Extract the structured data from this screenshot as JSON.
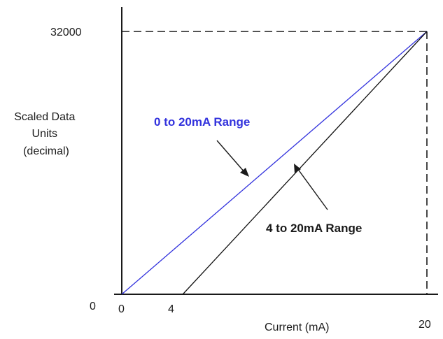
{
  "chart_data": {
    "type": "line",
    "title": "",
    "xlabel": "Current (mA)",
    "ylabel_lines": [
      "Scaled Data",
      "Units",
      "(decimal)"
    ],
    "xlim": [
      0,
      20
    ],
    "ylim": [
      0,
      32000
    ],
    "x_ticks": [
      "0",
      "4",
      "20"
    ],
    "y_ticks": [
      "0",
      "32000"
    ],
    "grid": false,
    "series": [
      {
        "name": "0 to 20mA Range",
        "color": "#3333dd",
        "x": [
          0,
          20
        ],
        "y": [
          0,
          32000
        ]
      },
      {
        "name": "4 to 20mA Range",
        "color": "#111111",
        "x": [
          4,
          20
        ],
        "y": [
          0,
          32000
        ]
      }
    ],
    "max_reference_lines": "dashed"
  }
}
